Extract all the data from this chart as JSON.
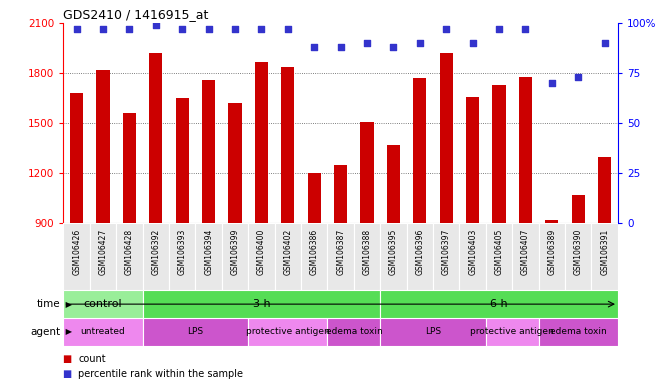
{
  "title": "GDS2410 / 1416915_at",
  "samples": [
    "GSM106426",
    "GSM106427",
    "GSM106428",
    "GSM106392",
    "GSM106393",
    "GSM106394",
    "GSM106399",
    "GSM106400",
    "GSM106402",
    "GSM106386",
    "GSM106387",
    "GSM106388",
    "GSM106395",
    "GSM106396",
    "GSM106397",
    "GSM106403",
    "GSM106405",
    "GSM106407",
    "GSM106389",
    "GSM106390",
    "GSM106391"
  ],
  "counts": [
    1680,
    1820,
    1560,
    1920,
    1650,
    1760,
    1620,
    1870,
    1840,
    1200,
    1250,
    1510,
    1370,
    1770,
    1920,
    1660,
    1730,
    1780,
    920,
    1070,
    1300
  ],
  "percentile_ranks": [
    97,
    97,
    97,
    99,
    97,
    97,
    97,
    97,
    97,
    88,
    88,
    90,
    88,
    90,
    97,
    90,
    97,
    97,
    70,
    73,
    90
  ],
  "ylim_left": [
    900,
    2100
  ],
  "ylim_right": [
    0,
    100
  ],
  "yticks_left": [
    900,
    1200,
    1500,
    1800,
    2100
  ],
  "yticks_right": [
    0,
    25,
    50,
    75,
    100
  ],
  "bar_color": "#cc0000",
  "dot_color": "#3333cc",
  "bar_bottom": 900,
  "time_groups": [
    {
      "label": "control",
      "start": 0,
      "end": 3,
      "color": "#99ee99"
    },
    {
      "label": "3 h",
      "start": 3,
      "end": 12,
      "color": "#55dd55"
    },
    {
      "label": "6 h",
      "start": 12,
      "end": 21,
      "color": "#55dd55"
    }
  ],
  "agent_groups": [
    {
      "label": "untreated",
      "start": 0,
      "end": 3,
      "color": "#ee88ee"
    },
    {
      "label": "LPS",
      "start": 3,
      "end": 7,
      "color": "#cc55cc"
    },
    {
      "label": "protective antigen",
      "start": 7,
      "end": 10,
      "color": "#ee88ee"
    },
    {
      "label": "edema toxin",
      "start": 10,
      "end": 12,
      "color": "#cc55cc"
    },
    {
      "label": "LPS",
      "start": 12,
      "end": 16,
      "color": "#cc55cc"
    },
    {
      "label": "protective antigen",
      "start": 16,
      "end": 18,
      "color": "#ee88ee"
    },
    {
      "label": "edema toxin",
      "start": 18,
      "end": 21,
      "color": "#cc55cc"
    }
  ],
  "background_color": "#ffffff",
  "plot_bg_color": "#ffffff",
  "grid_color": "#555555",
  "xlabel_bg_color": "#e8e8e8"
}
